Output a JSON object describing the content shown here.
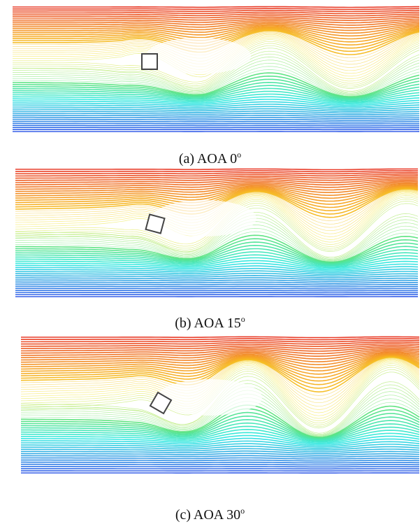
{
  "panels": [
    {
      "id": "a",
      "caption": "(a) AOA 0",
      "caption_degree": "o",
      "angle_of_attack": 0
    },
    {
      "id": "b",
      "caption": "(b) AOA 15",
      "caption_degree": "o",
      "angle_of_attack": 15
    },
    {
      "id": "c",
      "caption": "(c) AOA 30",
      "caption_degree": "o",
      "angle_of_attack": 30
    }
  ],
  "colors": {
    "top_red": "#e8321e",
    "orange": "#f5a320",
    "yellow": "#f4e323",
    "green": "#6fe04a",
    "cyan": "#2ee8e0",
    "blue": "#2a55e8",
    "wake_white": "#ffffff",
    "cylinder_edge": "#444444"
  }
}
